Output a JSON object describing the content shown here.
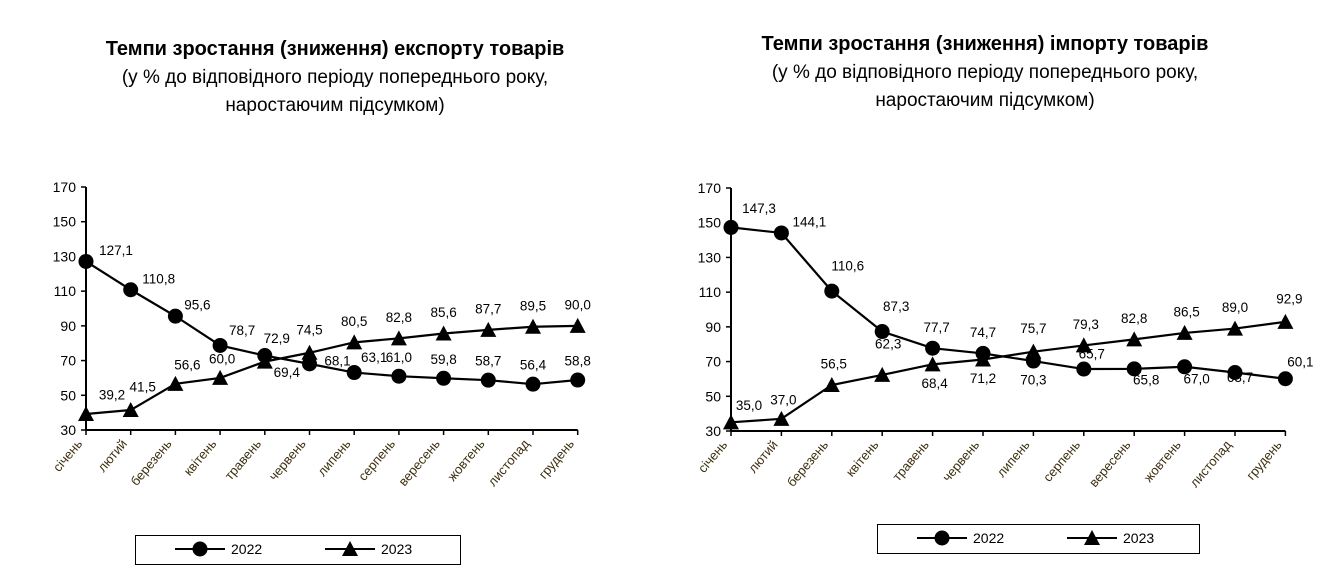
{
  "chart_data": [
    {
      "type": "line",
      "title": "Темпи зростання (зниження) експорту товарів",
      "subtitle_line1": "(у % до відповідного періоду попереднього року,",
      "subtitle_line2": "наростаючим підсумком)",
      "categories": [
        "січень",
        "лютий",
        "березень",
        "квітень",
        "травень",
        "червень",
        "липень",
        "серпень",
        "вересень",
        "жовтень",
        "листопад",
        "грудень"
      ],
      "ylim": [
        30,
        170
      ],
      "yticks": [
        30,
        50,
        70,
        90,
        110,
        130,
        150,
        170
      ],
      "legend_position": "bottom",
      "series": [
        {
          "name": "2022",
          "marker": "circle",
          "values": [
            127.1,
            110.8,
            95.6,
            78.7,
            72.9,
            68.1,
            63.1,
            61.0,
            59.8,
            58.7,
            56.4,
            58.8
          ],
          "labels": [
            "127,1",
            "110,8",
            "95,6",
            "78,7",
            "72,9",
            "68,1",
            "63,1",
            "61,0",
            "59,8",
            "58,7",
            "56,4",
            "58,8"
          ]
        },
        {
          "name": "2023",
          "marker": "triangle",
          "values": [
            39.2,
            41.5,
            56.6,
            60.0,
            69.4,
            74.5,
            80.5,
            82.8,
            85.6,
            87.7,
            89.5,
            90.0
          ],
          "labels": [
            "39,2",
            "41,5",
            "56,6",
            "60,0",
            "69,4",
            "74,5",
            "80,5",
            "82,8",
            "85,6",
            "87,7",
            "89,5",
            "90,0"
          ]
        }
      ]
    },
    {
      "type": "line",
      "title": "Темпи зростання (зниження) імпорту товарів",
      "subtitle_line1": "(у % до відповідного періоду попереднього року,",
      "subtitle_line2": "наростаючим підсумком)",
      "categories": [
        "січень",
        "лютий",
        "березень",
        "квітень",
        "травень",
        "червень",
        "липень",
        "серпень",
        "вересень",
        "жовтень",
        "листопад",
        "грудень"
      ],
      "ylim": [
        30,
        170
      ],
      "yticks": [
        30,
        50,
        70,
        90,
        110,
        130,
        150,
        170
      ],
      "legend_position": "bottom",
      "series": [
        {
          "name": "2022",
          "marker": "circle",
          "values": [
            147.3,
            144.1,
            110.6,
            87.3,
            77.7,
            74.7,
            70.3,
            65.7,
            65.8,
            67.0,
            63.7,
            60.1
          ],
          "labels": [
            "147,3",
            "144,1",
            "110,6",
            "87,3",
            "77,7",
            "74,7",
            "70,3",
            "65,7",
            "65,8",
            "67,0",
            "63,7",
            "60,1"
          ]
        },
        {
          "name": "2023",
          "marker": "triangle",
          "values": [
            35.0,
            37.0,
            56.5,
            62.3,
            68.4,
            71.2,
            75.7,
            79.3,
            82.8,
            86.5,
            89.0,
            92.9
          ],
          "labels": [
            "35,0",
            "37,0",
            "56,5",
            "62,3",
            "68,4",
            "71,2",
            "75,7",
            "79,3",
            "82,8",
            "86,5",
            "89,0",
            "92,9"
          ]
        }
      ]
    }
  ]
}
